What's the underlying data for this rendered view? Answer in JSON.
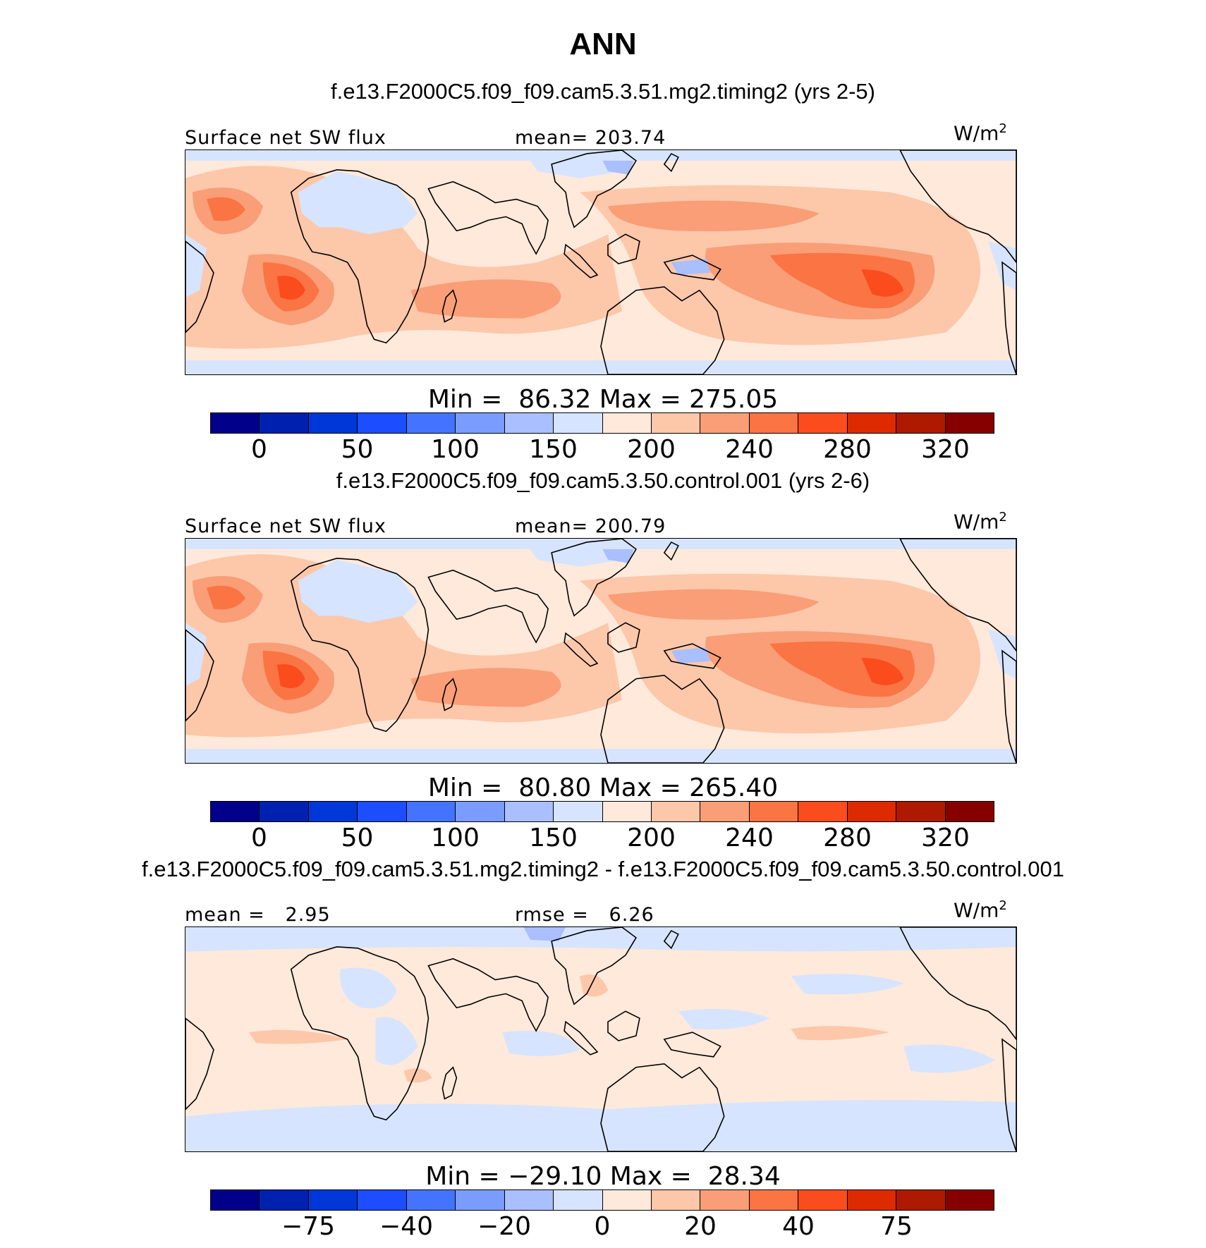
{
  "title": "ANN",
  "colors": [
    "#00008b",
    "#0020b0",
    "#0037d8",
    "#1c4dff",
    "#4474ff",
    "#7b9cff",
    "#aabfff",
    "#d6e4ff",
    "#ffe9da",
    "#fdc7aa",
    "#f99e76",
    "#fb7444",
    "#fb4c1e",
    "#de2a00",
    "#ad1a00",
    "#860000"
  ],
  "panels": [
    {
      "case": "f.e13.F2000C5.f09_f09.cam5.3.51.mg2.timing2 (yrs 2-5)",
      "left_label": "Surface net SW flux",
      "center_label": "mean= 203.74",
      "units": "W/m",
      "units_sup": "2",
      "minmax": "Min =  86.32 Max = 275.05",
      "ticks": [
        "0",
        "50",
        "100",
        "150",
        "200",
        "240",
        "280",
        "320"
      ],
      "style": "field"
    },
    {
      "case": "f.e13.F2000C5.f09_f09.cam5.3.50.control.001 (yrs 2-6)",
      "left_label": "Surface net SW flux",
      "center_label": "mean= 200.79",
      "units": "W/m",
      "units_sup": "2",
      "minmax": "Min =  80.80 Max = 265.40",
      "ticks": [
        "0",
        "50",
        "100",
        "150",
        "200",
        "240",
        "280",
        "320"
      ],
      "style": "field"
    },
    {
      "case": "f.e13.F2000C5.f09_f09.cam5.3.51.mg2.timing2 - f.e13.F2000C5.f09_f09.cam5.3.50.control.001",
      "left_label": "mean =   2.95",
      "center_label": "rmse =   6.26",
      "units": "W/m",
      "units_sup": "2",
      "minmax": "Min = −29.10 Max =  28.34",
      "ticks": [
        "−75",
        "−40",
        "−20",
        "0",
        "20",
        "40",
        "75"
      ],
      "style": "diff"
    }
  ]
}
